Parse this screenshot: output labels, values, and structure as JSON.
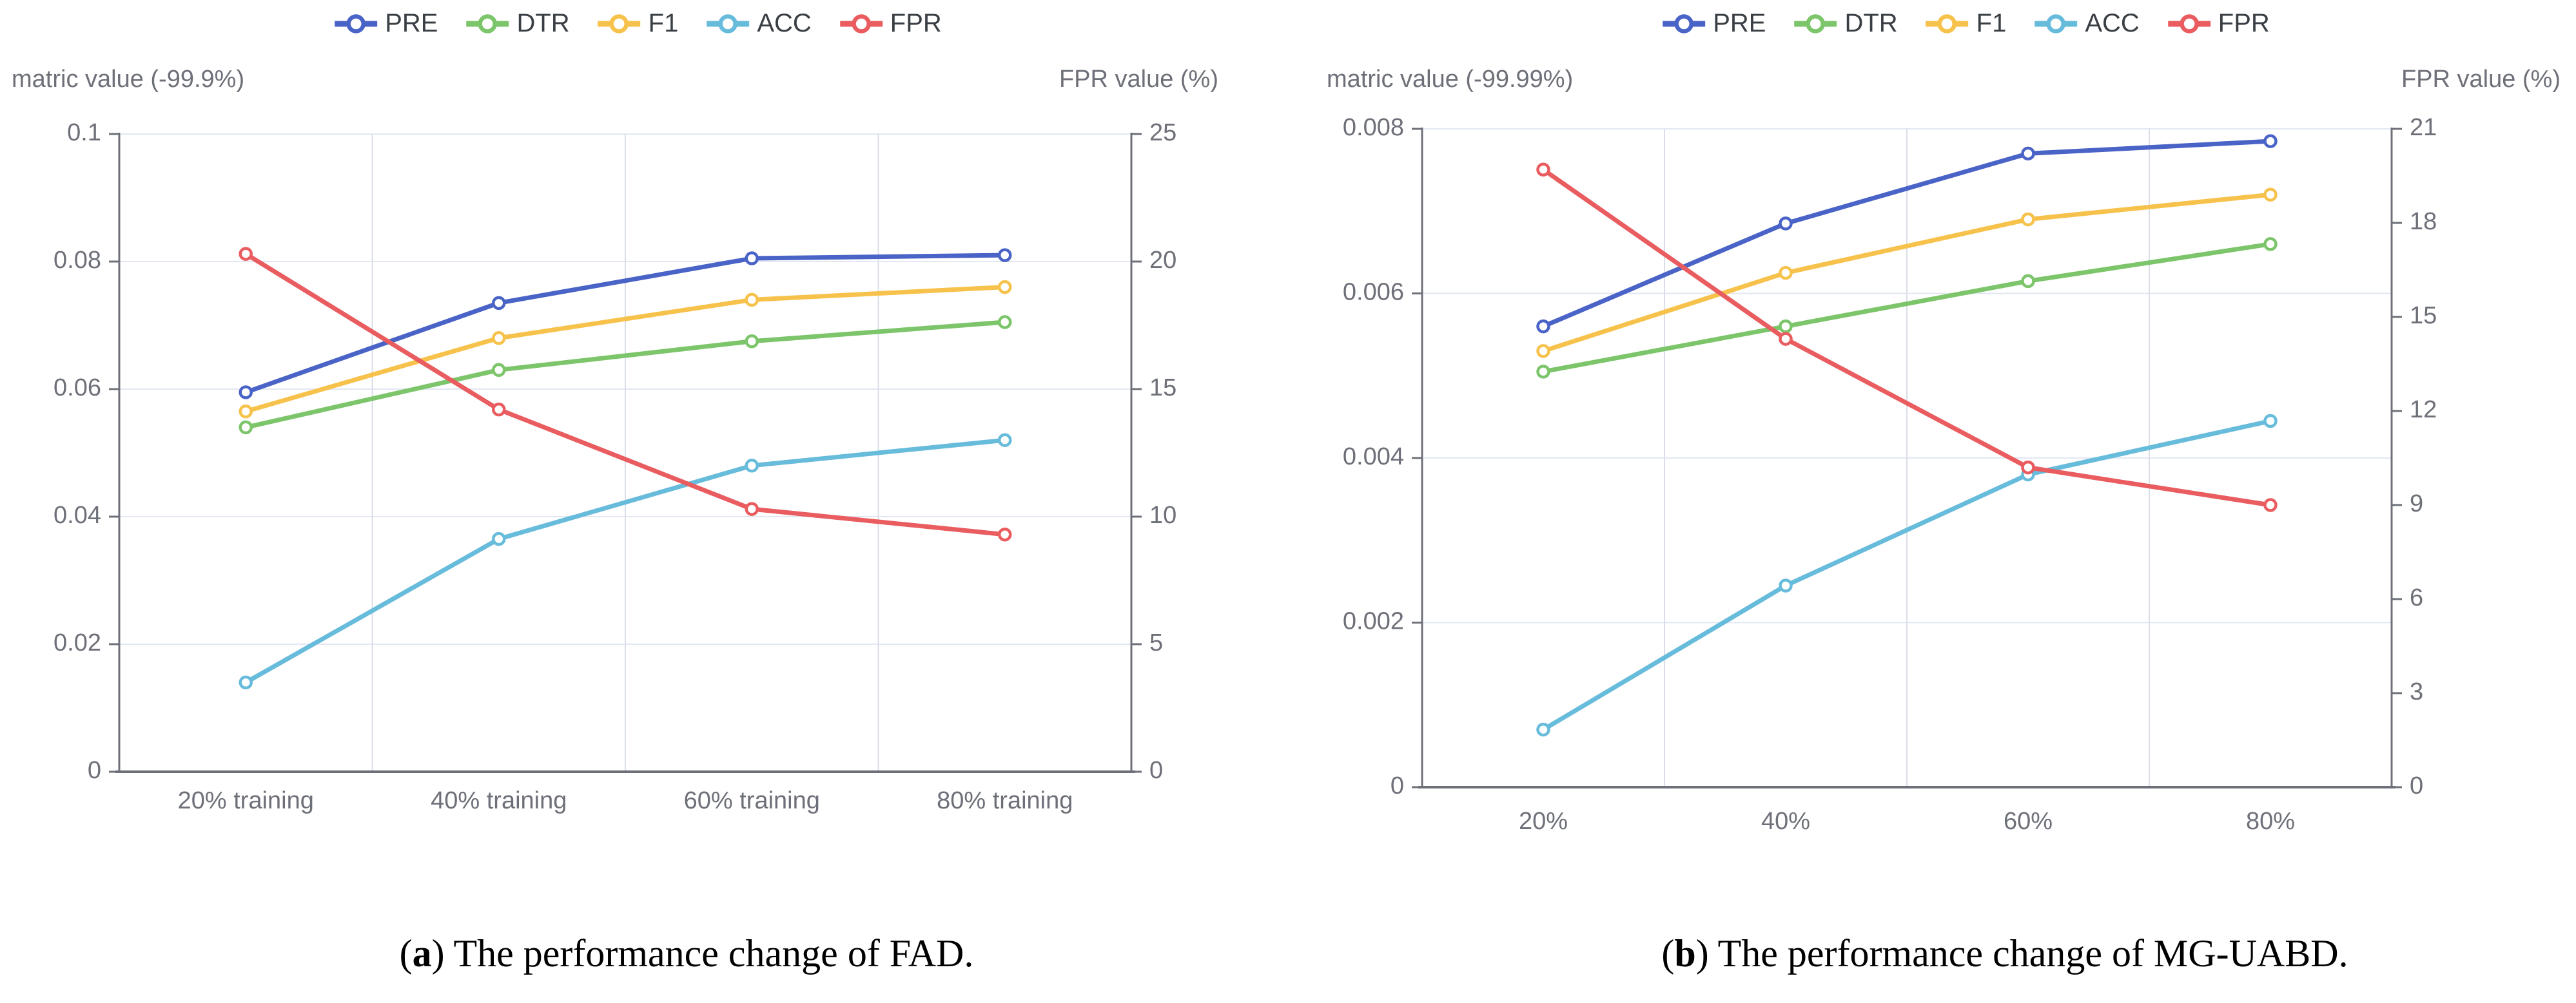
{
  "colors": {
    "pre": "#4A63C7",
    "dtr": "#7CC56A",
    "f1": "#F7C24B",
    "acc": "#67BBDB",
    "fpr": "#E95C5F",
    "axis": "#6E7079",
    "grid_horizontal": "#E2E7F2",
    "grid_vertical": "#D9DEE8"
  },
  "captions": [
    {
      "prefix": "(",
      "letter": "a",
      "suffix": ") The performance change of FAD."
    },
    {
      "prefix": "(",
      "letter": "b",
      "suffix": ") The performance change of MG-UABD."
    }
  ],
  "chart_data": [
    {
      "type": "line",
      "title": "(a) The performance change of FAD.",
      "categories": [
        "20% training",
        "40% training",
        "60% training",
        "80% training"
      ],
      "left_axis": {
        "label": "matric value (-99.9%)",
        "min": 0,
        "max": 0.1,
        "tick_labels": [
          "0",
          "0.02",
          "0.04",
          "0.06",
          "0.08",
          "0.1"
        ]
      },
      "right_axis": {
        "label": "FPR value (%)",
        "min": 0,
        "max": 25,
        "tick_labels": [
          "0",
          "5",
          "10",
          "15",
          "20",
          "25"
        ]
      },
      "legend_position": "top",
      "grid": true,
      "series": [
        {
          "name": "PRE",
          "color": "#4A63C7",
          "axis": "left",
          "values": [
            0.0595,
            0.0735,
            0.0805,
            0.081
          ]
        },
        {
          "name": "DTR",
          "color": "#7CC56A",
          "axis": "left",
          "values": [
            0.054,
            0.063,
            0.0675,
            0.0705
          ]
        },
        {
          "name": "F1",
          "color": "#F7C24B",
          "axis": "left",
          "values": [
            0.0565,
            0.068,
            0.074,
            0.076
          ]
        },
        {
          "name": "ACC",
          "color": "#67BBDB",
          "axis": "left",
          "values": [
            0.014,
            0.0365,
            0.048,
            0.052
          ]
        },
        {
          "name": "FPR",
          "color": "#E95C5F",
          "axis": "right",
          "values": [
            20.3,
            14.2,
            10.3,
            9.3
          ]
        }
      ]
    },
    {
      "type": "line",
      "title": "(b) The performance change of MG-UABD.",
      "categories": [
        "20%",
        "40%",
        "60%",
        "80%"
      ],
      "left_axis": {
        "label": "matric value (-99.99%)",
        "min": 0,
        "max": 0.008,
        "tick_labels": [
          "0",
          "0.002",
          "0.004",
          "0.006",
          "0.008"
        ]
      },
      "right_axis": {
        "label": "FPR value (%)",
        "min": 0,
        "max": 21,
        "tick_labels": [
          "0",
          "3",
          "6",
          "9",
          "12",
          "15",
          "18",
          "21"
        ]
      },
      "legend_position": "top",
      "grid": true,
      "series": [
        {
          "name": "PRE",
          "color": "#4A63C7",
          "axis": "left",
          "values": [
            0.0056,
            0.00685,
            0.0077,
            0.00785
          ]
        },
        {
          "name": "DTR",
          "color": "#7CC56A",
          "axis": "left",
          "values": [
            0.00505,
            0.0056,
            0.00615,
            0.0066
          ]
        },
        {
          "name": "F1",
          "color": "#F7C24B",
          "axis": "left",
          "values": [
            0.0053,
            0.00625,
            0.0069,
            0.0072
          ]
        },
        {
          "name": "ACC",
          "color": "#67BBDB",
          "axis": "left",
          "values": [
            0.0007,
            0.00245,
            0.0038,
            0.00445
          ]
        },
        {
          "name": "FPR",
          "color": "#E95C5F",
          "axis": "right",
          "values": [
            19.7,
            14.3,
            10.2,
            9.0
          ]
        }
      ]
    }
  ]
}
